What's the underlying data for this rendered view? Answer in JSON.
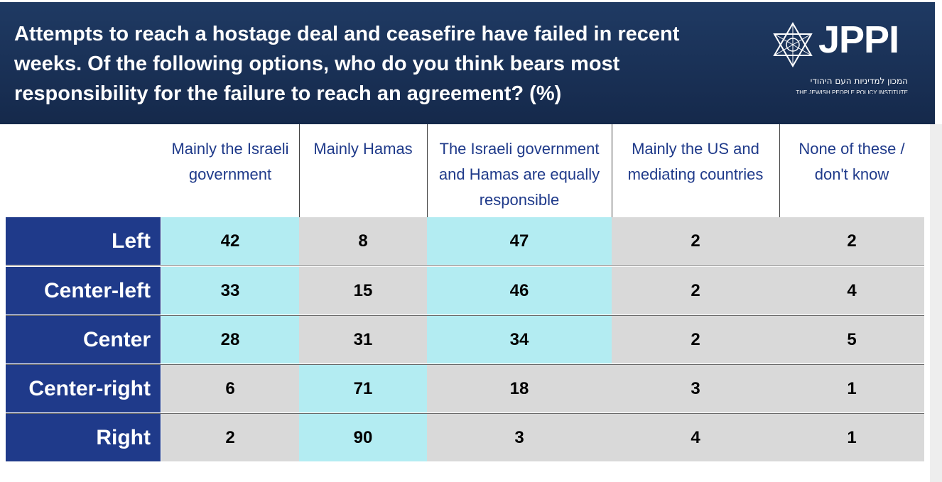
{
  "header": {
    "title": "Attempts to reach a hostage deal and ceasefire have failed in recent weeks. Of the following options, who do you think bears most responsibility for the failure to reach an agreement? (%)",
    "logo_text": "JPPI",
    "logo_hebrew": "המכון למדיניות העם היהודי",
    "logo_english": "THE JEWISH PEOPLE POLICY INSTITUTE",
    "logo_icon": "star-of-david-icon"
  },
  "colors": {
    "header_bg": "#1a3358",
    "row_label_bg": "#1f3a8a",
    "header_text": "#1f3a8a",
    "highlight_cell": "#b3ecf2",
    "default_cell": "#d9d9d9"
  },
  "chart_data": {
    "type": "table",
    "columns": [
      "Mainly the Israeli government",
      "Mainly Hamas",
      "The Israeli government and Hamas are equally responsible",
      "Mainly the US and mediating countries",
      "None of these / don't know"
    ],
    "rows": [
      {
        "label": "Left",
        "values": [
          42,
          8,
          47,
          2,
          2
        ],
        "highlighted": [
          true,
          false,
          true,
          false,
          false
        ]
      },
      {
        "label": "Center-left",
        "values": [
          33,
          15,
          46,
          2,
          4
        ],
        "highlighted": [
          true,
          false,
          true,
          false,
          false
        ]
      },
      {
        "label": "Center",
        "values": [
          28,
          31,
          34,
          2,
          5
        ],
        "highlighted": [
          true,
          false,
          true,
          false,
          false
        ]
      },
      {
        "label": "Center-right",
        "values": [
          6,
          71,
          18,
          3,
          1
        ],
        "highlighted": [
          false,
          true,
          false,
          false,
          false
        ]
      },
      {
        "label": "Right",
        "values": [
          2,
          90,
          3,
          4,
          1
        ],
        "highlighted": [
          false,
          true,
          false,
          false,
          false
        ]
      }
    ]
  }
}
